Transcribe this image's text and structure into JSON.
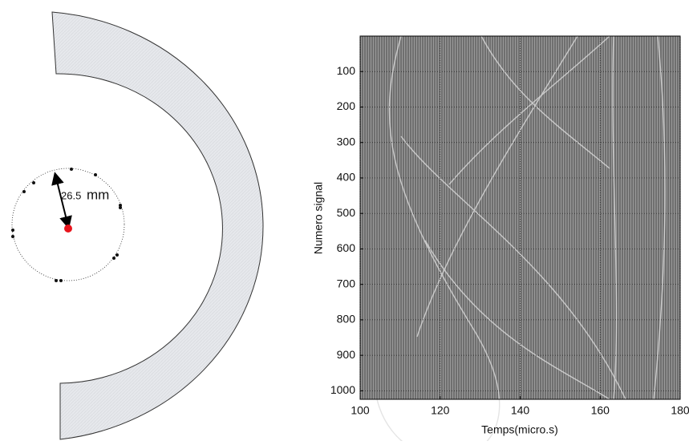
{
  "diagram": {
    "radius_value": "26.5",
    "radius_unit": "mm"
  },
  "chart_data": {
    "type": "heatmap",
    "x_label": "Temps(micro.s)",
    "y_label": "Numero signal",
    "xlim": [
      100,
      180
    ],
    "xticks": [
      100,
      120,
      140,
      160,
      180
    ],
    "ylim": [
      1024,
      0
    ],
    "yticks": [
      100,
      200,
      300,
      400,
      500,
      600,
      700,
      800,
      900,
      1000
    ],
    "grid": true
  }
}
